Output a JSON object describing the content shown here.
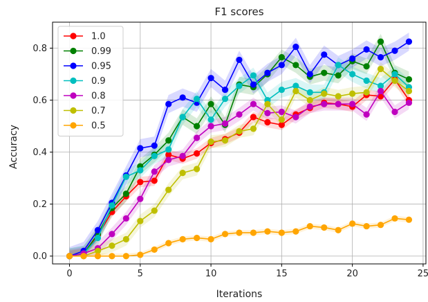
{
  "chart_data": {
    "type": "line",
    "title": "F1 scores",
    "xlabel": "Iterations",
    "ylabel": "Accuracy",
    "xlim": [
      -1.2,
      25.2
    ],
    "ylim": [
      -0.03,
      0.9
    ],
    "xticks": [
      0,
      5,
      10,
      15,
      20,
      25
    ],
    "yticks": [
      0.0,
      0.2,
      0.4,
      0.6,
      0.8
    ],
    "xtick_labels": [
      "0",
      "5",
      "10",
      "15",
      "20",
      "25"
    ],
    "ytick_labels": [
      "0.0",
      "0.2",
      "0.4",
      "0.6",
      "0.8"
    ],
    "grid": true,
    "legend_position": "top-left",
    "x": [
      0,
      1,
      2,
      3,
      4,
      5,
      6,
      7,
      8,
      9,
      10,
      11,
      12,
      13,
      14,
      15,
      16,
      17,
      18,
      19,
      20,
      21,
      22,
      23,
      24
    ],
    "series": [
      {
        "name": "1.0",
        "color": "#ff0000",
        "band": 0.02,
        "values": [
          0.0,
          0.01,
          0.08,
          0.17,
          0.23,
          0.285,
          0.29,
          0.39,
          0.375,
          0.395,
          0.435,
          0.45,
          0.475,
          0.535,
          0.515,
          0.505,
          0.545,
          0.57,
          0.59,
          0.585,
          0.575,
          0.62,
          0.615,
          0.68,
          0.6
        ]
      },
      {
        "name": "0.99",
        "color": "#008000",
        "band": 0.03,
        "values": [
          0.0,
          0.01,
          0.085,
          0.185,
          0.24,
          0.345,
          0.39,
          0.445,
          0.535,
          0.5,
          0.585,
          0.505,
          0.66,
          0.65,
          0.7,
          0.765,
          0.735,
          0.69,
          0.705,
          0.695,
          0.75,
          0.73,
          0.825,
          0.705,
          0.68
        ]
      },
      {
        "name": "0.95",
        "color": "#0000ff",
        "band": 0.035,
        "values": [
          0.0,
          0.02,
          0.1,
          0.205,
          0.31,
          0.415,
          0.425,
          0.585,
          0.61,
          0.59,
          0.685,
          0.64,
          0.755,
          0.66,
          0.705,
          0.735,
          0.805,
          0.7,
          0.775,
          0.735,
          0.76,
          0.795,
          0.765,
          0.79,
          0.825
        ]
      },
      {
        "name": "0.9",
        "color": "#00bfbf",
        "band": 0.03,
        "values": [
          0.0,
          0.01,
          0.07,
          0.195,
          0.305,
          0.33,
          0.385,
          0.41,
          0.535,
          0.605,
          0.525,
          0.605,
          0.655,
          0.695,
          0.6,
          0.64,
          0.655,
          0.63,
          0.63,
          0.735,
          0.7,
          0.675,
          0.655,
          0.7,
          0.65
        ]
      },
      {
        "name": "0.8",
        "color": "#bf00bf",
        "band": 0.025,
        "values": [
          0.0,
          0.01,
          0.03,
          0.085,
          0.145,
          0.22,
          0.325,
          0.37,
          0.385,
          0.455,
          0.5,
          0.51,
          0.545,
          0.585,
          0.55,
          0.555,
          0.535,
          0.575,
          0.585,
          0.585,
          0.585,
          0.545,
          0.635,
          0.555,
          0.59
        ]
      },
      {
        "name": "0.7",
        "color": "#bfbf00",
        "band": 0.025,
        "values": [
          0.0,
          0.0,
          0.02,
          0.04,
          0.065,
          0.135,
          0.175,
          0.255,
          0.32,
          0.335,
          0.44,
          0.445,
          0.48,
          0.49,
          0.585,
          0.525,
          0.635,
          0.6,
          0.625,
          0.615,
          0.625,
          0.63,
          0.72,
          0.675,
          0.635
        ]
      },
      {
        "name": "0.5",
        "color": "#ffa500",
        "band": 0.01,
        "values": [
          0.0,
          0.0,
          0.0,
          0.0,
          0.0,
          0.005,
          0.025,
          0.05,
          0.065,
          0.07,
          0.065,
          0.085,
          0.09,
          0.09,
          0.095,
          0.09,
          0.095,
          0.115,
          0.11,
          0.1,
          0.125,
          0.115,
          0.12,
          0.145,
          0.14
        ]
      }
    ]
  }
}
